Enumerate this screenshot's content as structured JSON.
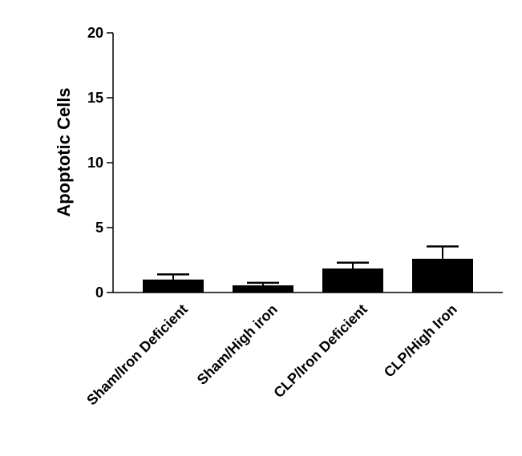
{
  "chart_data": {
    "type": "bar",
    "title": "",
    "xlabel": "",
    "ylabel": "Apoptotic Cells",
    "ylim": [
      0,
      20
    ],
    "yticks": [
      0,
      5,
      10,
      15,
      20
    ],
    "categories": [
      "Sham/Iron Deficient",
      "Sham/High iron",
      "CLP/Iron Deficient",
      "CLP/High Iron"
    ],
    "values": [
      1.0,
      0.55,
      1.85,
      2.6
    ],
    "errors": [
      0.4,
      0.2,
      0.45,
      0.95
    ],
    "grid": false,
    "bar_color": "#000000"
  }
}
